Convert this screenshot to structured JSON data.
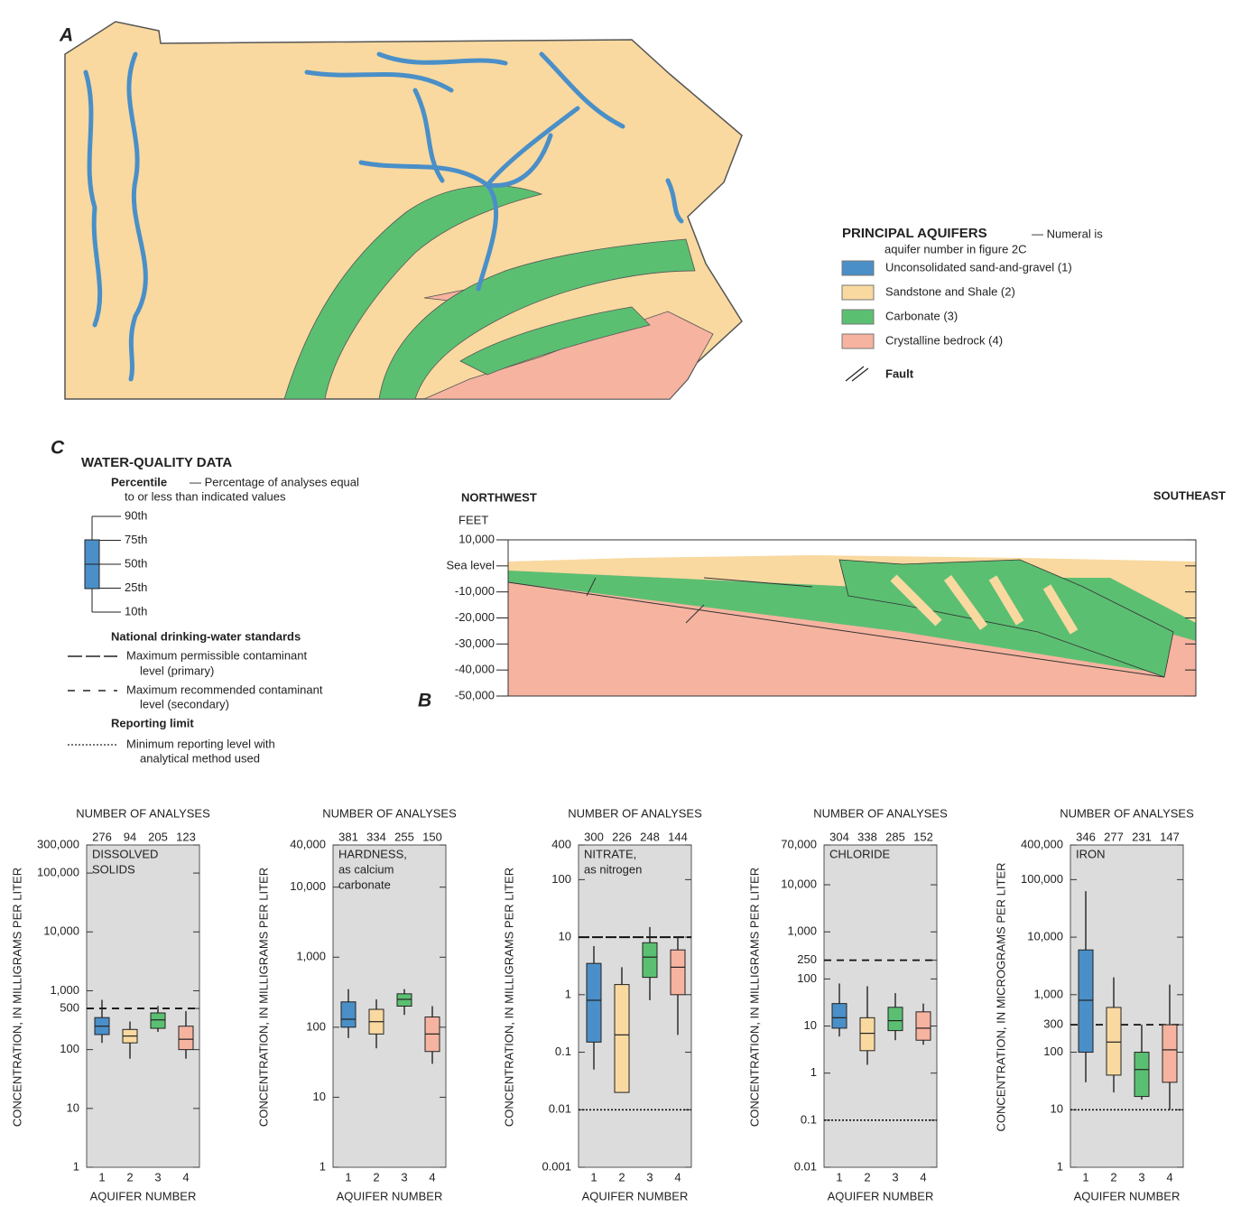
{
  "map": {
    "label": "A",
    "legend": {
      "title": "PRINCIPAL AQUIFERS",
      "note": [
        "— Numeral is",
        "aquifer number in figure 2C"
      ],
      "items": [
        {
          "name": "Unconsolidated sand-and-gravel (1)",
          "color": "#4a8fc8"
        },
        {
          "name": "Sandstone and Shale (2)",
          "color": "#f9d9a0"
        },
        {
          "name": "Carbonate (3)",
          "color": "#5bbf72"
        },
        {
          "name": "Crystalline bedrock (4)",
          "color": "#f6b3a0"
        }
      ],
      "fault": "Fault"
    }
  },
  "cross_section": {
    "label": "B",
    "left": "NORTHWEST",
    "right": "SOUTHEAST",
    "unit": "FEET",
    "ylim": [
      -50000,
      10000
    ],
    "yticks": [
      {
        "value": 10000,
        "label": "10,000"
      },
      {
        "value": 0,
        "label": "Sea level"
      },
      {
        "value": -10000,
        "label": "-10,000"
      },
      {
        "value": -20000,
        "label": "-20,000"
      },
      {
        "value": -30000,
        "label": "-30,000"
      },
      {
        "value": -40000,
        "label": "-40,000"
      },
      {
        "value": -50000,
        "label": "-50,000"
      }
    ]
  },
  "legend_c": {
    "label": "C",
    "title": "WATER-QUALITY DATA",
    "percentile_title": "Percentile",
    "percentile_note": [
      "— Percentage of analyses equal",
      "to or less than indicated values"
    ],
    "percentiles": [
      "90th",
      "75th",
      "50th",
      "25th",
      "10th"
    ],
    "standards_title": "National drinking-water standards",
    "primary": [
      "Maximum permissible contaminant",
      "level (primary)"
    ],
    "secondary": [
      "Maximum recommended contaminant",
      "level (secondary)"
    ],
    "reporting_title": "Reporting limit",
    "reporting": [
      "Minimum reporting level with",
      "analytical method used"
    ]
  },
  "chart_data": [
    {
      "type": "box",
      "log_scale": true,
      "title": "NUMBER OF ANALYSES",
      "counts": [
        276,
        94,
        205,
        123
      ],
      "label": [
        "DISSOLVED",
        "SOLIDS"
      ],
      "ylabel": "CONCENTRATION, IN MILLIGRAMS PER LITER",
      "xlabel": "AQUIFER NUMBER",
      "categories": [
        "1",
        "2",
        "3",
        "4"
      ],
      "colors": [
        "#4a8fc8",
        "#f9d9a0",
        "#5bbf72",
        "#f6b3a0"
      ],
      "boxes": [
        {
          "p10": 130,
          "p25": 180,
          "p50": 250,
          "p75": 350,
          "p90": 700
        },
        {
          "p10": 70,
          "p25": 130,
          "p50": 170,
          "p75": 220,
          "p90": 300
        },
        {
          "p10": 200,
          "p25": 230,
          "p50": 320,
          "p75": 420,
          "p90": 550
        },
        {
          "p10": 70,
          "p25": 100,
          "p50": 150,
          "p75": 250,
          "p90": 450
        }
      ],
      "ylim": [
        1,
        300000
      ],
      "yticks": [
        1,
        10,
        100,
        500,
        {
          "value": 1000,
          "label": "1,000"
        },
        {
          "value": 10000,
          "label": "10,000"
        },
        {
          "value": 100000,
          "label": "100,000"
        },
        {
          "value": 300000,
          "label": "300,000"
        }
      ],
      "limits": [
        {
          "value": 500,
          "kind": "secondary"
        }
      ]
    },
    {
      "type": "box",
      "log_scale": true,
      "title": "NUMBER OF ANALYSES",
      "counts": [
        381,
        334,
        255,
        150
      ],
      "label": [
        "HARDNESS,",
        "as calcium",
        "carbonate"
      ],
      "ylabel": "CONCENTRATION, IN MILLIGRAMS PER LITER",
      "xlabel": "AQUIFER NUMBER",
      "categories": [
        "1",
        "2",
        "3",
        "4"
      ],
      "colors": [
        "#4a8fc8",
        "#f9d9a0",
        "#5bbf72",
        "#f6b3a0"
      ],
      "boxes": [
        {
          "p10": 70,
          "p25": 100,
          "p50": 130,
          "p75": 230,
          "p90": 350
        },
        {
          "p10": 50,
          "p25": 80,
          "p50": 120,
          "p75": 180,
          "p90": 250
        },
        {
          "p10": 150,
          "p25": 200,
          "p50": 250,
          "p75": 300,
          "p90": 350
        },
        {
          "p10": 30,
          "p25": 45,
          "p50": 80,
          "p75": 140,
          "p90": 200
        }
      ],
      "ylim": [
        1,
        40000
      ],
      "yticks": [
        1,
        10,
        100,
        {
          "value": 1000,
          "label": "1,000"
        },
        {
          "value": 10000,
          "label": "10,000"
        },
        {
          "value": 40000,
          "label": "40,000"
        }
      ],
      "limits": []
    },
    {
      "type": "box",
      "log_scale": true,
      "title": "NUMBER OF ANALYSES",
      "counts": [
        300,
        226,
        248,
        144
      ],
      "label": [
        "NITRATE,",
        "as nitrogen"
      ],
      "ylabel": "CONCENTRATION, IN MILLIGRAMS PER LITER",
      "xlabel": "AQUIFER NUMBER",
      "categories": [
        "1",
        "2",
        "3",
        "4"
      ],
      "colors": [
        "#4a8fc8",
        "#f9d9a0",
        "#5bbf72",
        "#f6b3a0"
      ],
      "boxes": [
        {
          "p10": 0.05,
          "p25": 0.15,
          "p50": 0.8,
          "p75": 3.5,
          "p90": 7
        },
        {
          "p10": 0.02,
          "p25": 0.02,
          "p50": 0.2,
          "p75": 1.5,
          "p90": 3
        },
        {
          "p10": 0.8,
          "p25": 2,
          "p50": 4.5,
          "p75": 8,
          "p90": 15
        },
        {
          "p10": 0.2,
          "p25": 1,
          "p50": 3,
          "p75": 6,
          "p90": 10
        }
      ],
      "ylim": [
        0.001,
        400
      ],
      "yticks": [
        0.001,
        0.01,
        0.1,
        1,
        10,
        100,
        400
      ],
      "limits": [
        {
          "value": 10,
          "kind": "primary"
        },
        {
          "value": 0.01,
          "kind": "reporting"
        }
      ]
    },
    {
      "type": "box",
      "log_scale": true,
      "title": "NUMBER OF ANALYSES",
      "counts": [
        304,
        338,
        285,
        152
      ],
      "label": [
        "CHLORIDE"
      ],
      "ylabel": "CONCENTRATION, IN MILLIGRAMS PER LITER",
      "xlabel": "AQUIFER NUMBER",
      "categories": [
        "1",
        "2",
        "3",
        "4"
      ],
      "colors": [
        "#4a8fc8",
        "#f9d9a0",
        "#5bbf72",
        "#f6b3a0"
      ],
      "boxes": [
        {
          "p10": 6,
          "p25": 9,
          "p50": 15,
          "p75": 30,
          "p90": 80
        },
        {
          "p10": 1.5,
          "p25": 3,
          "p50": 7,
          "p75": 15,
          "p90": 70
        },
        {
          "p10": 5,
          "p25": 8,
          "p50": 13,
          "p75": 25,
          "p90": 50
        },
        {
          "p10": 4,
          "p25": 5,
          "p50": 9,
          "p75": 20,
          "p90": 30
        }
      ],
      "ylim": [
        0.01,
        70000
      ],
      "yticks": [
        0.01,
        0.1,
        1,
        10,
        100,
        250,
        {
          "value": 1000,
          "label": "1,000"
        },
        {
          "value": 10000,
          "label": "10,000"
        },
        {
          "value": 70000,
          "label": "70,000"
        }
      ],
      "limits": [
        {
          "value": 250,
          "kind": "secondary"
        },
        {
          "value": 0.1,
          "kind": "reporting"
        }
      ]
    },
    {
      "type": "box",
      "log_scale": true,
      "title": "NUMBER OF ANALYSES",
      "counts": [
        346,
        277,
        231,
        147
      ],
      "label": [
        "IRON"
      ],
      "ylabel": "CONCENTRATION, IN MICROGRAMS PER LITER",
      "xlabel": "AQUIFER NUMBER",
      "categories": [
        "1",
        "2",
        "3",
        "4"
      ],
      "colors": [
        "#4a8fc8",
        "#f9d9a0",
        "#5bbf72",
        "#f6b3a0"
      ],
      "boxes": [
        {
          "p10": 30,
          "p25": 100,
          "p50": 800,
          "p75": 6000,
          "p90": 63000
        },
        {
          "p10": 20,
          "p25": 40,
          "p50": 150,
          "p75": 600,
          "p90": 2000
        },
        {
          "p10": 15,
          "p25": 17,
          "p50": 50,
          "p75": 100,
          "p90": 300
        },
        {
          "p10": 10,
          "p25": 30,
          "p50": 110,
          "p75": 300,
          "p90": 1500
        }
      ],
      "ylim": [
        1,
        400000
      ],
      "yticks": [
        1,
        10,
        100,
        300,
        {
          "value": 1000,
          "label": "1,000"
        },
        {
          "value": 10000,
          "label": "10,000"
        },
        {
          "value": 100000,
          "label": "100,000"
        },
        {
          "value": 400000,
          "label": "400,000"
        }
      ],
      "limits": [
        {
          "value": 300,
          "kind": "secondary"
        },
        {
          "value": 10,
          "kind": "reporting"
        }
      ]
    }
  ]
}
